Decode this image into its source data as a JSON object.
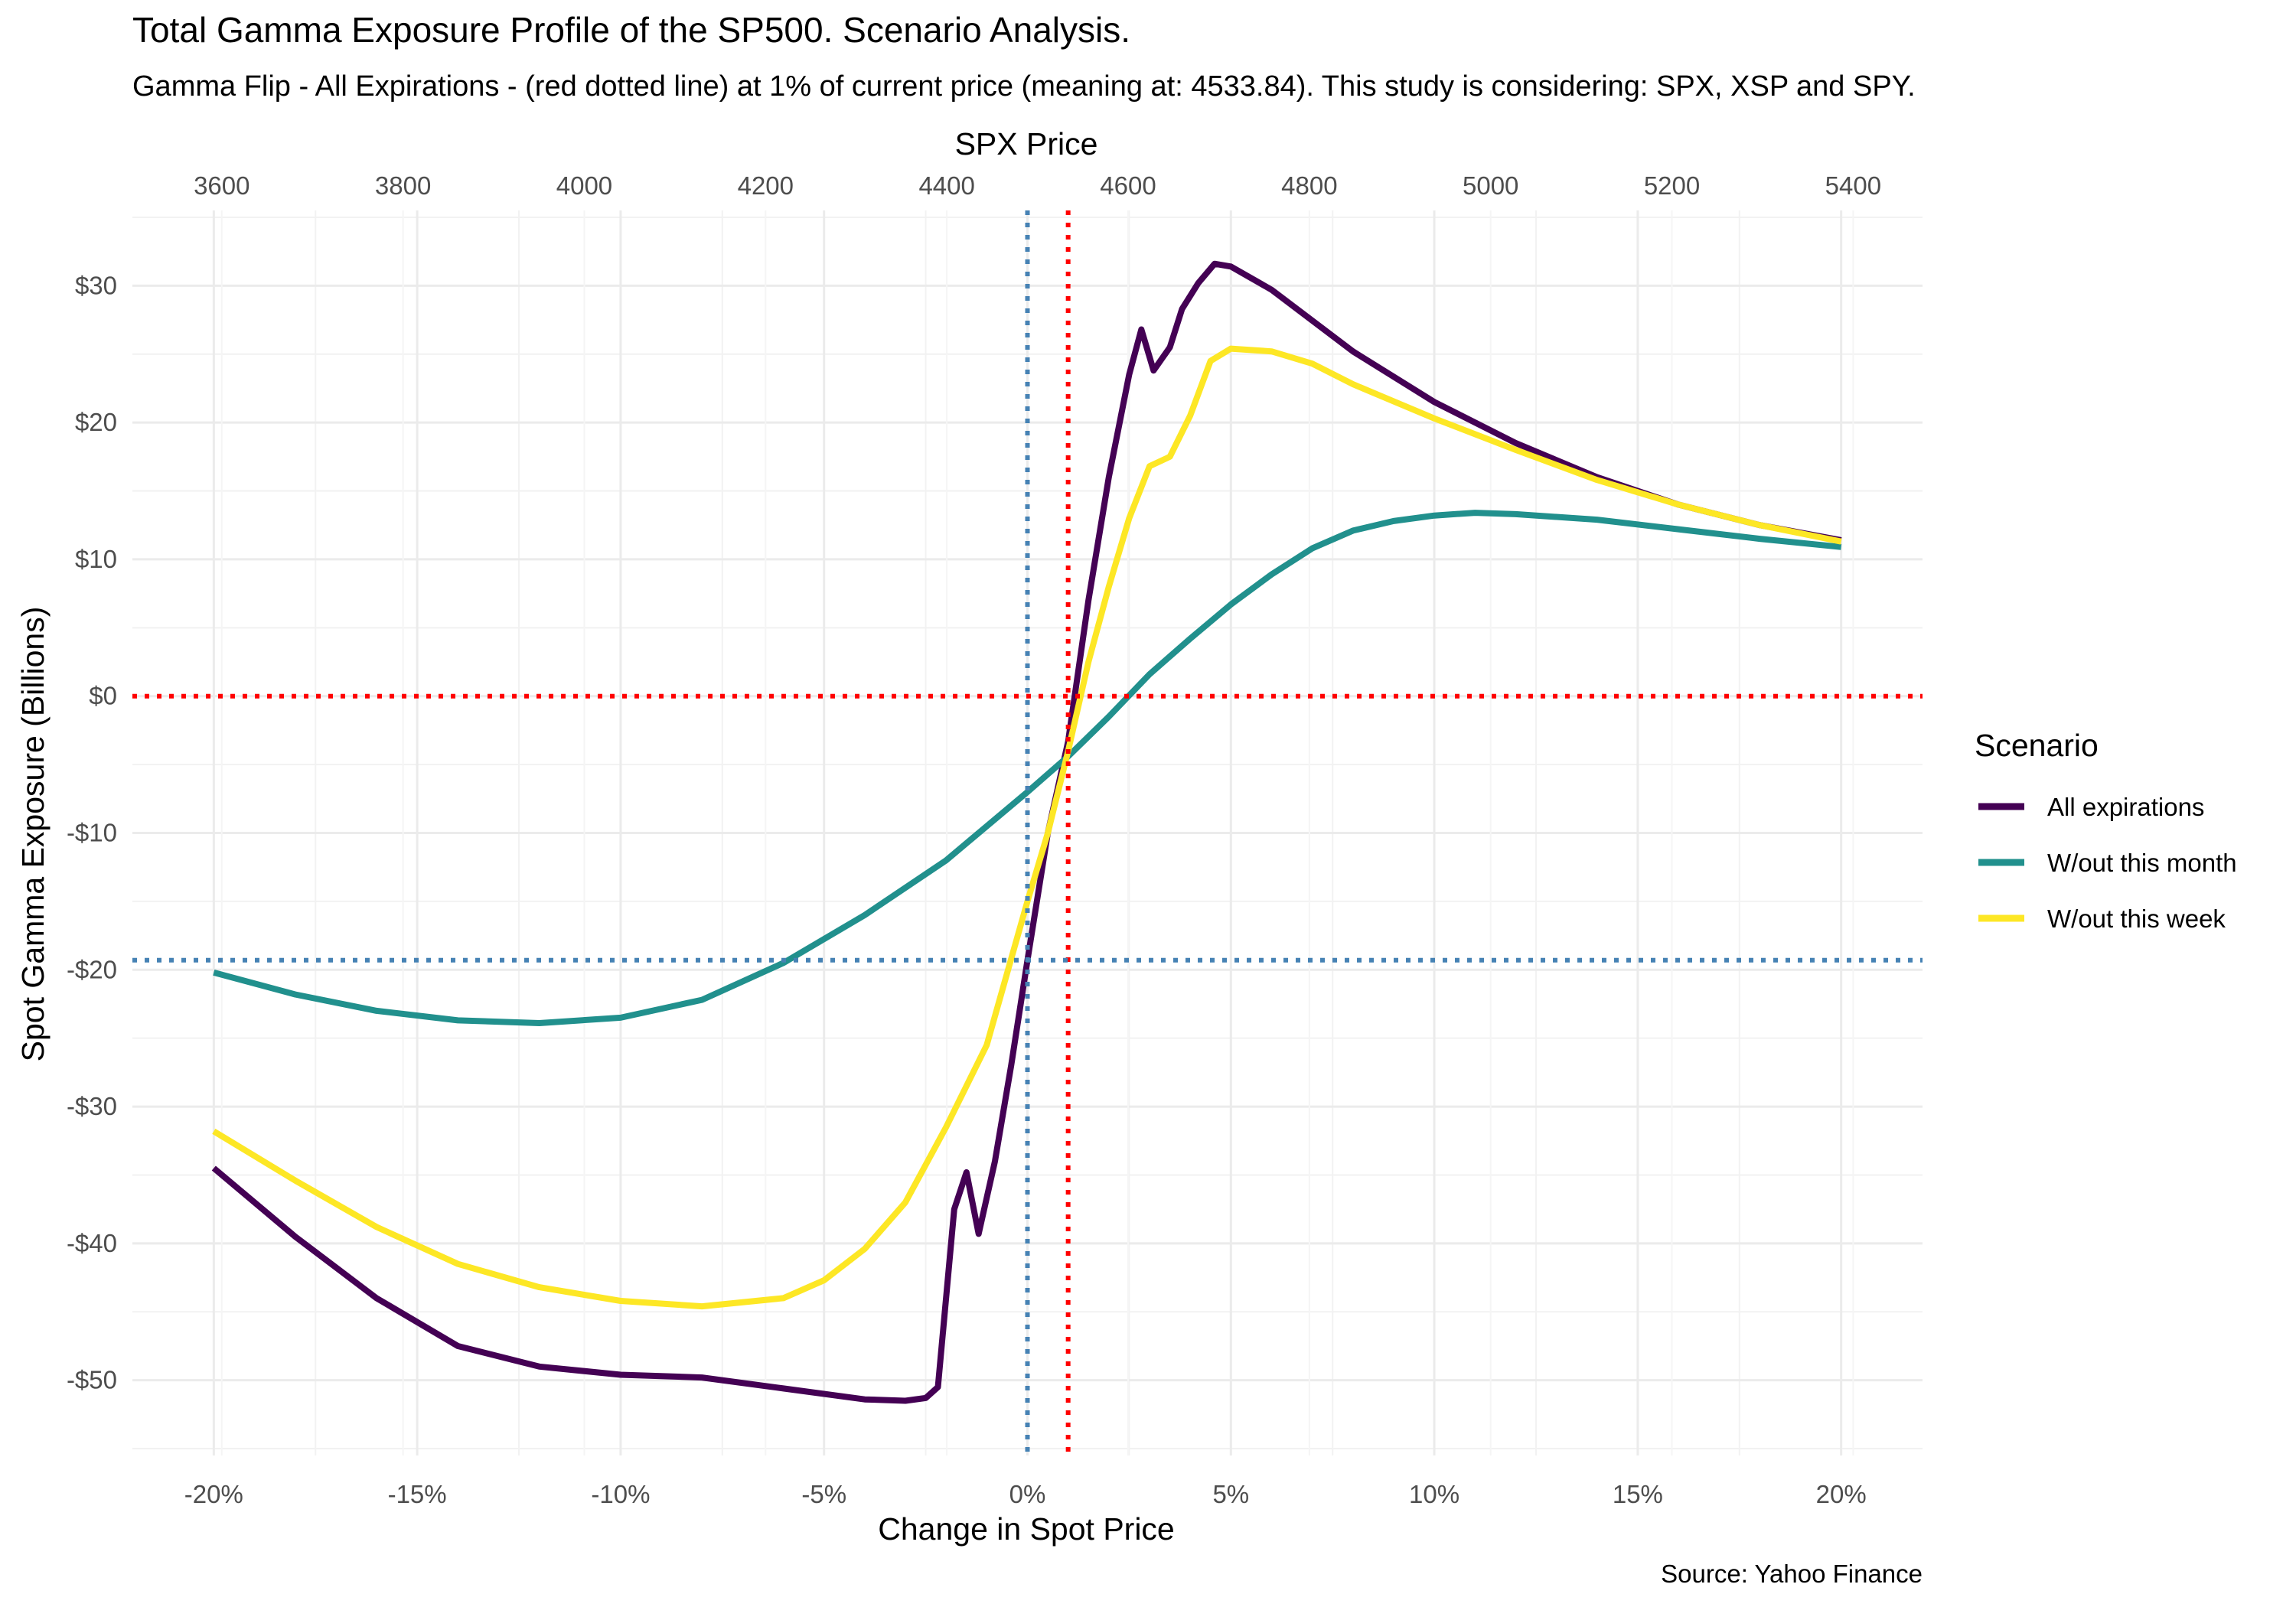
{
  "title": "Total Gamma Exposure Profile of the SP500. Scenario Analysis.",
  "subtitle": "Gamma Flip - All Expirations - (red dotted line) at 1% of current price (meaning at: 4533.84). This study is considering: SPX, XSP and SPY.",
  "caption": "Source: Yahoo Finance",
  "chart_data": {
    "type": "line",
    "xlabel": "Change in Spot Price",
    "ylabel": "Spot Gamma Exposure (Billions)",
    "secondary_xlabel": "SPX Price",
    "xlim": [
      -22,
      22
    ],
    "ylim": [
      -55.5,
      35.5
    ],
    "x_ticks": [
      -20,
      -15,
      -10,
      -5,
      0,
      5,
      10,
      15,
      20
    ],
    "x_tick_labels": [
      "-20%",
      "-15%",
      "-10%",
      "-5%",
      "0%",
      "5%",
      "10%",
      "15%",
      "20%"
    ],
    "y_ticks": [
      -50,
      -40,
      -30,
      -20,
      -10,
      0,
      10,
      20,
      30
    ],
    "y_tick_labels": [
      "-$50",
      "-$40",
      "-$30",
      "-$20",
      "-$10",
      "$0",
      "$10",
      "$20",
      "$30"
    ],
    "secondary_x_ticks": [
      3600,
      3800,
      4000,
      4200,
      4400,
      4600,
      4800,
      5000,
      5200,
      5400
    ],
    "secondary_x_tick_labels": [
      "3600",
      "3800",
      "4000",
      "4200",
      "4400",
      "4600",
      "4800",
      "5000",
      "5200",
      "5400"
    ],
    "grid": true,
    "legend": {
      "title": "Scenario",
      "position": "right"
    },
    "reference_lines": [
      {
        "orientation": "vertical",
        "x": 0,
        "color": "#4682b4",
        "style": "dotted"
      },
      {
        "orientation": "vertical",
        "x": 1,
        "color": "#ff0000",
        "style": "dotted"
      },
      {
        "orientation": "horizontal",
        "y": 0,
        "color": "#ff0000",
        "style": "dotted"
      },
      {
        "orientation": "horizontal",
        "y": -19.3,
        "color": "#4682b4",
        "style": "dotted"
      }
    ],
    "series": [
      {
        "name": "All expirations",
        "color": "#440154",
        "points": [
          [
            -20,
            -34.5
          ],
          [
            -18,
            -39.5
          ],
          [
            -16,
            -44
          ],
          [
            -14,
            -47.5
          ],
          [
            -12,
            -49
          ],
          [
            -10,
            -49.6
          ],
          [
            -8,
            -49.8
          ],
          [
            -6,
            -50.6
          ],
          [
            -4,
            -51.4
          ],
          [
            -3,
            -51.5
          ],
          [
            -2.5,
            -51.3
          ],
          [
            -2.2,
            -50.5
          ],
          [
            -1.8,
            -37.5
          ],
          [
            -1.5,
            -34.8
          ],
          [
            -1.2,
            -39.3
          ],
          [
            -0.8,
            -34
          ],
          [
            -0.4,
            -27
          ],
          [
            0,
            -19.3
          ],
          [
            0.5,
            -10
          ],
          [
            1,
            -3.3
          ],
          [
            1.5,
            7
          ],
          [
            2,
            16
          ],
          [
            2.5,
            23.5
          ],
          [
            2.8,
            26.8
          ],
          [
            3.1,
            23.8
          ],
          [
            3.5,
            25.5
          ],
          [
            3.8,
            28.3
          ],
          [
            4.2,
            30.2
          ],
          [
            4.6,
            31.6
          ],
          [
            5,
            31.4
          ],
          [
            6,
            29.7
          ],
          [
            8,
            25.2
          ],
          [
            10,
            21.5
          ],
          [
            12,
            18.5
          ],
          [
            14,
            16
          ],
          [
            16,
            14
          ],
          [
            18,
            12.5
          ],
          [
            20,
            11.4
          ]
        ]
      },
      {
        "name": "W/out this month",
        "color": "#21908d",
        "points": [
          [
            -20,
            -20.2
          ],
          [
            -18,
            -21.8
          ],
          [
            -16,
            -23
          ],
          [
            -14,
            -23.7
          ],
          [
            -12,
            -23.9
          ],
          [
            -10,
            -23.5
          ],
          [
            -8,
            -22.2
          ],
          [
            -6,
            -19.5
          ],
          [
            -4,
            -16
          ],
          [
            -2,
            -12
          ],
          [
            0,
            -7
          ],
          [
            1,
            -4.4
          ],
          [
            2,
            -1.5
          ],
          [
            3,
            1.6
          ],
          [
            4,
            4.2
          ],
          [
            5,
            6.7
          ],
          [
            6,
            8.9
          ],
          [
            7,
            10.8
          ],
          [
            8,
            12.1
          ],
          [
            9,
            12.8
          ],
          [
            10,
            13.2
          ],
          [
            11,
            13.4
          ],
          [
            12,
            13.3
          ],
          [
            14,
            12.9
          ],
          [
            16,
            12.2
          ],
          [
            18,
            11.5
          ],
          [
            20,
            10.9
          ]
        ]
      },
      {
        "name": "W/out this week",
        "color": "#fde725",
        "points": [
          [
            -20,
            -31.8
          ],
          [
            -18,
            -35.4
          ],
          [
            -16,
            -38.8
          ],
          [
            -14,
            -41.5
          ],
          [
            -12,
            -43.2
          ],
          [
            -10,
            -44.2
          ],
          [
            -8,
            -44.6
          ],
          [
            -6,
            -44
          ],
          [
            -5,
            -42.7
          ],
          [
            -4,
            -40.4
          ],
          [
            -3,
            -37
          ],
          [
            -2,
            -31.5
          ],
          [
            -1,
            -25.5
          ],
          [
            0,
            -15
          ],
          [
            0.5,
            -10
          ],
          [
            1,
            -4
          ],
          [
            1.5,
            2.5
          ],
          [
            2,
            8
          ],
          [
            2.5,
            13
          ],
          [
            3,
            16.8
          ],
          [
            3.5,
            17.5
          ],
          [
            4,
            20.5
          ],
          [
            4.5,
            24.5
          ],
          [
            5,
            25.4
          ],
          [
            6,
            25.2
          ],
          [
            7,
            24.3
          ],
          [
            8,
            22.8
          ],
          [
            10,
            20.3
          ],
          [
            12,
            18
          ],
          [
            14,
            15.8
          ],
          [
            16,
            14
          ],
          [
            18,
            12.5
          ],
          [
            20,
            11.3
          ]
        ]
      }
    ]
  }
}
